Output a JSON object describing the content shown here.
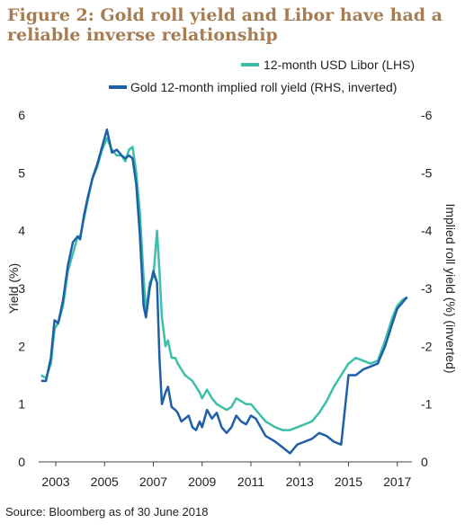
{
  "title": "Figure 2: Gold roll yield and Libor have had a reliable inverse relationship",
  "source": "Source: Bloomberg as of 30 June 2018",
  "colors": {
    "libor": "#3cbfa8",
    "roll": "#1f5fa8",
    "title": "#a67c52"
  },
  "chart_data": {
    "type": "line",
    "title": "Figure 2: Gold roll yield and Libor have had a reliable inverse relationship",
    "legend_position": "top-right",
    "grid": false,
    "x_ticks": [
      "2003",
      "2005",
      "2007",
      "2009",
      "2011",
      "2013",
      "2015",
      "2017"
    ],
    "xlim": [
      2002.3,
      2017.6
    ],
    "ylabel_left": "Yield (%)",
    "ylim_left": [
      0,
      6
    ],
    "y_ticks_left": [
      "0",
      "1",
      "2",
      "3",
      "4",
      "5",
      "6"
    ],
    "ylabel_right": "Implied roll yield (%) (inverted)",
    "ylim_right": [
      0,
      -6
    ],
    "y_ticks_right": [
      "0",
      "-1",
      "-2",
      "-3",
      "-4",
      "-5",
      "-6"
    ],
    "series": [
      {
        "name": "12-month USD Libor (LHS)",
        "axis": "left",
        "color": "#3cbfa8",
        "x": [
          2002.4,
          2002.6,
          2002.8,
          2002.95,
          2003.1,
          2003.3,
          2003.5,
          2003.7,
          2003.9,
          2004.0,
          2004.15,
          2004.3,
          2004.5,
          2004.7,
          2004.9,
          2005.1,
          2005.3,
          2005.5,
          2005.7,
          2005.85,
          2006.0,
          2006.15,
          2006.3,
          2006.45,
          2006.6,
          2006.7,
          2006.85,
          2007.0,
          2007.15,
          2007.25,
          2007.35,
          2007.5,
          2007.6,
          2007.75,
          2007.9,
          2008.0,
          2008.15,
          2008.3,
          2008.45,
          2008.6,
          2008.75,
          2008.9,
          2009.0,
          2009.2,
          2009.4,
          2009.6,
          2009.8,
          2010.0,
          2010.2,
          2010.4,
          2010.6,
          2010.8,
          2011.0,
          2011.2,
          2011.4,
          2011.6,
          2011.8,
          2012.0,
          2012.3,
          2012.6,
          2012.9,
          2013.2,
          2013.5,
          2013.8,
          2014.1,
          2014.4,
          2014.7,
          2015.0,
          2015.3,
          2015.6,
          2015.9,
          2016.2,
          2016.5,
          2016.8,
          2017.0,
          2017.2,
          2017.4
        ],
        "values": [
          1.5,
          1.45,
          1.7,
          2.3,
          2.4,
          2.7,
          3.3,
          3.6,
          3.9,
          3.9,
          4.2,
          4.5,
          4.9,
          5.1,
          5.4,
          5.6,
          5.4,
          5.3,
          5.3,
          5.2,
          5.4,
          5.45,
          5.0,
          4.3,
          3.2,
          2.6,
          3.1,
          3.2,
          4.0,
          3.3,
          2.5,
          2.0,
          2.1,
          1.8,
          1.8,
          1.7,
          1.6,
          1.5,
          1.45,
          1.4,
          1.3,
          1.2,
          1.1,
          1.25,
          1.1,
          1.0,
          0.95,
          0.9,
          0.95,
          1.1,
          1.05,
          1.0,
          1.0,
          0.9,
          0.8,
          0.7,
          0.65,
          0.6,
          0.55,
          0.55,
          0.6,
          0.65,
          0.7,
          0.85,
          1.05,
          1.3,
          1.5,
          1.7,
          1.8,
          1.75,
          1.7,
          1.75,
          2.1,
          2.5,
          2.7,
          2.8,
          2.85
        ]
      },
      {
        "name": "Gold 12-month implied roll yield (RHS, inverted)",
        "axis": "right",
        "color": "#1f5fa8",
        "x": [
          2002.4,
          2002.6,
          2002.8,
          2002.95,
          2003.1,
          2003.3,
          2003.5,
          2003.7,
          2003.9,
          2004.0,
          2004.15,
          2004.3,
          2004.5,
          2004.7,
          2004.9,
          2005.1,
          2005.3,
          2005.5,
          2005.7,
          2005.85,
          2006.0,
          2006.15,
          2006.3,
          2006.45,
          2006.6,
          2006.7,
          2006.85,
          2007.0,
          2007.15,
          2007.25,
          2007.35,
          2007.5,
          2007.6,
          2007.75,
          2007.9,
          2008.0,
          2008.15,
          2008.3,
          2008.45,
          2008.6,
          2008.75,
          2008.9,
          2009.0,
          2009.2,
          2009.4,
          2009.6,
          2009.8,
          2010.0,
          2010.2,
          2010.4,
          2010.6,
          2010.8,
          2011.0,
          2011.2,
          2011.4,
          2011.6,
          2011.8,
          2012.0,
          2012.3,
          2012.6,
          2012.9,
          2013.2,
          2013.5,
          2013.8,
          2014.1,
          2014.4,
          2014.7,
          2015.0,
          2015.3,
          2015.6,
          2015.9,
          2016.2,
          2016.5,
          2016.8,
          2017.0,
          2017.2,
          2017.4
        ],
        "values": [
          -1.4,
          -1.4,
          -1.8,
          -2.45,
          -2.4,
          -2.8,
          -3.4,
          -3.8,
          -3.9,
          -3.85,
          -4.25,
          -4.55,
          -4.9,
          -5.15,
          -5.45,
          -5.75,
          -5.35,
          -5.4,
          -5.3,
          -5.25,
          -5.3,
          -5.25,
          -4.8,
          -3.9,
          -2.7,
          -2.5,
          -3.0,
          -3.3,
          -3.1,
          -1.8,
          -1.0,
          -1.2,
          -1.3,
          -0.95,
          -0.9,
          -0.85,
          -0.7,
          -0.75,
          -0.8,
          -0.6,
          -0.55,
          -0.7,
          -0.6,
          -0.9,
          -0.75,
          -0.85,
          -0.6,
          -0.5,
          -0.6,
          -0.8,
          -0.7,
          -0.65,
          -0.8,
          -0.75,
          -0.6,
          -0.45,
          -0.4,
          -0.35,
          -0.25,
          -0.15,
          -0.3,
          -0.35,
          -0.4,
          -0.5,
          -0.45,
          -0.35,
          -0.3,
          -1.5,
          -1.5,
          -1.6,
          -1.65,
          -1.7,
          -2.0,
          -2.4,
          -2.65,
          -2.75,
          -2.85
        ]
      }
    ]
  }
}
